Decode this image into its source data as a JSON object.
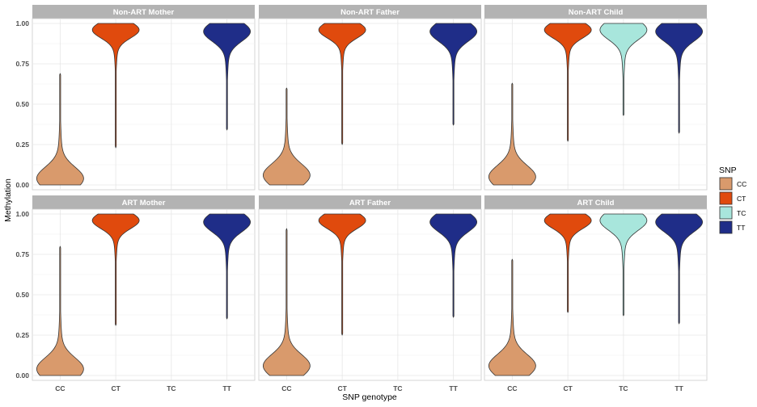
{
  "chart_data": {
    "type": "violin",
    "xlabel": "SNP genotype",
    "ylabel": "Methylation",
    "categories": [
      "CC",
      "CT",
      "TC",
      "TT"
    ],
    "ylim": [
      -0.03,
      1.03
    ],
    "yticks": [
      0,
      0.25,
      0.5,
      0.75,
      1
    ],
    "ytick_labels": [
      "0.00",
      "0.25",
      "0.50",
      "0.75",
      "1.00"
    ],
    "grid": true,
    "legend": {
      "title": "SNP",
      "position": "right",
      "items": [
        {
          "label": "CC",
          "color": "#D99A6C"
        },
        {
          "label": "CT",
          "color": "#E04A0D"
        },
        {
          "label": "TC",
          "color": "#A8E6DC"
        },
        {
          "label": "TT",
          "color": "#1F2D88"
        }
      ]
    },
    "colors": {
      "CC": "#D99A6C",
      "CT": "#E04A0D",
      "TC": "#A8E6DC",
      "TT": "#1F2D88"
    },
    "panels": [
      {
        "title": "Non-ART Mother",
        "violins": [
          {
            "genotype": "CC",
            "min": 0.0,
            "max": 0.69,
            "mode": 0.04,
            "spread": 0.07,
            "width": 1.0
          },
          {
            "genotype": "CT",
            "min": 0.23,
            "max": 1.0,
            "mode": 0.96,
            "spread": 0.05,
            "width": 1.0
          },
          {
            "genotype": "TT",
            "min": 0.34,
            "max": 1.0,
            "mode": 0.95,
            "spread": 0.06,
            "width": 1.0
          }
        ]
      },
      {
        "title": "Non-ART Father",
        "violins": [
          {
            "genotype": "CC",
            "min": 0.0,
            "max": 0.6,
            "mode": 0.06,
            "spread": 0.07,
            "width": 1.0
          },
          {
            "genotype": "CT",
            "min": 0.25,
            "max": 1.0,
            "mode": 0.96,
            "spread": 0.05,
            "width": 1.0
          },
          {
            "genotype": "TT",
            "min": 0.37,
            "max": 1.0,
            "mode": 0.95,
            "spread": 0.06,
            "width": 1.0
          }
        ]
      },
      {
        "title": "Non-ART Child",
        "violins": [
          {
            "genotype": "CC",
            "min": 0.0,
            "max": 0.63,
            "mode": 0.05,
            "spread": 0.07,
            "width": 1.0
          },
          {
            "genotype": "CT",
            "min": 0.27,
            "max": 1.0,
            "mode": 0.96,
            "spread": 0.05,
            "width": 1.0
          },
          {
            "genotype": "TC",
            "min": 0.43,
            "max": 1.0,
            "mode": 0.96,
            "spread": 0.06,
            "width": 1.0
          },
          {
            "genotype": "TT",
            "min": 0.32,
            "max": 1.0,
            "mode": 0.95,
            "spread": 0.06,
            "width": 1.0
          }
        ]
      },
      {
        "title": "ART Mother",
        "violins": [
          {
            "genotype": "CC",
            "min": 0.0,
            "max": 0.8,
            "mode": 0.04,
            "spread": 0.07,
            "width": 1.0
          },
          {
            "genotype": "CT",
            "min": 0.31,
            "max": 1.0,
            "mode": 0.96,
            "spread": 0.05,
            "width": 1.0
          },
          {
            "genotype": "TT",
            "min": 0.35,
            "max": 1.0,
            "mode": 0.95,
            "spread": 0.06,
            "width": 1.0
          }
        ]
      },
      {
        "title": "ART Father",
        "violins": [
          {
            "genotype": "CC",
            "min": 0.0,
            "max": 0.91,
            "mode": 0.06,
            "spread": 0.07,
            "width": 1.0
          },
          {
            "genotype": "CT",
            "min": 0.25,
            "max": 1.0,
            "mode": 0.96,
            "spread": 0.05,
            "width": 1.0
          },
          {
            "genotype": "TT",
            "min": 0.36,
            "max": 1.0,
            "mode": 0.95,
            "spread": 0.06,
            "width": 1.0
          }
        ]
      },
      {
        "title": "ART Child",
        "violins": [
          {
            "genotype": "CC",
            "min": 0.0,
            "max": 0.72,
            "mode": 0.06,
            "spread": 0.07,
            "width": 1.0
          },
          {
            "genotype": "CT",
            "min": 0.39,
            "max": 1.0,
            "mode": 0.96,
            "spread": 0.05,
            "width": 1.0
          },
          {
            "genotype": "TC",
            "min": 0.37,
            "max": 1.0,
            "mode": 0.96,
            "spread": 0.06,
            "width": 1.0
          },
          {
            "genotype": "TT",
            "min": 0.32,
            "max": 1.0,
            "mode": 0.95,
            "spread": 0.06,
            "width": 1.0
          }
        ]
      }
    ]
  }
}
